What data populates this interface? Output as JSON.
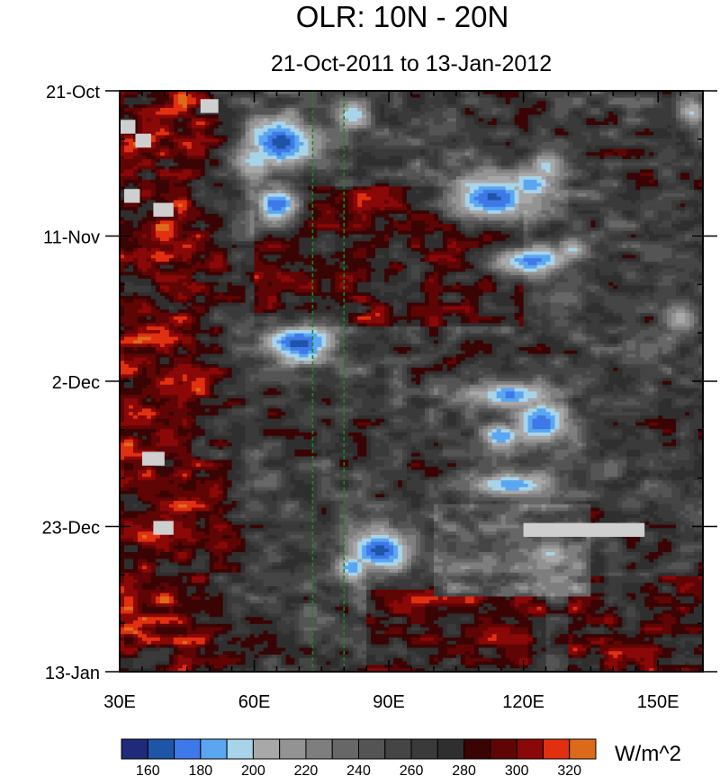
{
  "chart_data": {
    "type": "heatmap",
    "title": "OLR: 10N - 20N",
    "subtitle": "21-Oct-2011 to 13-Jan-2012",
    "x_axis": {
      "range": [
        30,
        160
      ],
      "ticks": [
        30,
        60,
        90,
        120,
        150
      ],
      "tick_labels": [
        "30E",
        "60E",
        "90E",
        "120E",
        "150E"
      ]
    },
    "y_axis": {
      "range_days": [
        0,
        84
      ],
      "tick_days": [
        0,
        21,
        42,
        63,
        84
      ],
      "tick_labels": [
        "21-Oct",
        "11-Nov",
        "2-Dec",
        "23-Dec",
        "13-Jan"
      ]
    },
    "reference_lines_lon": [
      73,
      80
    ],
    "reference_line_color": "#1a8a1a",
    "colorbar": {
      "units": "W/m^2",
      "levels": [
        160,
        170,
        180,
        190,
        200,
        210,
        220,
        230,
        240,
        250,
        260,
        270,
        280,
        290,
        300,
        310,
        320
      ],
      "labels": [
        "160",
        "180",
        "200",
        "220",
        "240",
        "260",
        "280",
        "300",
        "320"
      ],
      "colors": [
        "#1f2a7a",
        "#1f55a6",
        "#3f78e8",
        "#5aa6f0",
        "#a8d4ea",
        "#a8a8a8",
        "#939393",
        "#7e7e7e",
        "#676767",
        "#545454",
        "#454545",
        "#3a3a3a",
        "#2f2f2f",
        "#3a0404",
        "#600505",
        "#8a0808",
        "#e03010",
        "#dd6a1a"
      ]
    },
    "missing_boxes": [
      {
        "lon": [
          48,
          52
        ],
        "day": [
          1.2,
          3.2
        ]
      },
      {
        "lon": [
          30,
          33.5
        ],
        "day": [
          4.2,
          6.2
        ]
      },
      {
        "lon": [
          33.5,
          37
        ],
        "day": [
          6.2,
          8.2
        ]
      },
      {
        "lon": [
          31,
          34.5
        ],
        "day": [
          14.2,
          16.2
        ]
      },
      {
        "lon": [
          37.5,
          42
        ],
        "day": [
          16.2,
          18.2
        ]
      },
      {
        "lon": [
          35,
          40
        ],
        "day": [
          52.2,
          54.2
        ]
      },
      {
        "lon": [
          37.5,
          42
        ],
        "day": [
          62.2,
          64.2
        ]
      },
      {
        "lon": [
          120,
          147
        ],
        "day": [
          62.5,
          64.5
        ]
      }
    ],
    "convective_events": [
      {
        "lon": 66,
        "day": 7.5,
        "min": 165,
        "slon": 6,
        "sday": 2.8
      },
      {
        "lon": 60,
        "day": 10,
        "min": 195,
        "slon": 4,
        "sday": 2.5
      },
      {
        "lon": 65,
        "day": 16.5,
        "min": 170,
        "slon": 4,
        "sday": 2.2
      },
      {
        "lon": 82,
        "day": 3.5,
        "min": 190,
        "slon": 3,
        "sday": 1.5
      },
      {
        "lon": 113,
        "day": 15.5,
        "min": 168,
        "slon": 8,
        "sday": 2.6
      },
      {
        "lon": 122,
        "day": 13.5,
        "min": 182,
        "slon": 4,
        "sday": 2.0
      },
      {
        "lon": 125,
        "day": 11,
        "min": 196,
        "slon": 3,
        "sday": 2.0
      },
      {
        "lon": 122,
        "day": 24.5,
        "min": 176,
        "slon": 7,
        "sday": 1.7
      },
      {
        "lon": 131,
        "day": 23,
        "min": 198,
        "slon": 3,
        "sday": 1.5
      },
      {
        "lon": 70,
        "day": 36.5,
        "min": 166,
        "slon": 6,
        "sday": 2.2
      },
      {
        "lon": 117,
        "day": 44,
        "min": 178,
        "slon": 7,
        "sday": 1.6
      },
      {
        "lon": 124,
        "day": 48,
        "min": 173,
        "slon": 5,
        "sday": 2.4
      },
      {
        "lon": 115,
        "day": 50,
        "min": 180,
        "slon": 3,
        "sday": 1.5
      },
      {
        "lon": 118,
        "day": 57,
        "min": 182,
        "slon": 8,
        "sday": 1.5
      },
      {
        "lon": 88,
        "day": 66.5,
        "min": 166,
        "slon": 6,
        "sday": 2.5
      },
      {
        "lon": 82,
        "day": 69,
        "min": 182,
        "slon": 3,
        "sday": 2.0
      },
      {
        "lon": 126,
        "day": 67,
        "min": 198,
        "slon": 3,
        "sday": 1.5
      },
      {
        "lon": 155,
        "day": 33,
        "min": 205,
        "slon": 3,
        "sday": 2.0
      },
      {
        "lon": 158,
        "day": 3,
        "min": 198,
        "slon": 2,
        "sday": 1.5
      }
    ]
  }
}
